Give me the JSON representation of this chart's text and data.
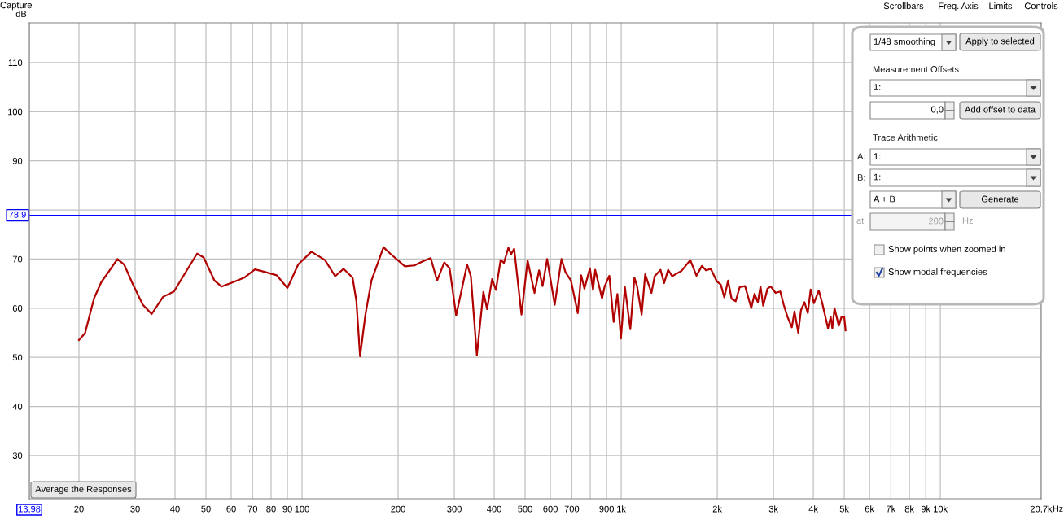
{
  "chart_data": {
    "type": "line",
    "ylabel": "dB",
    "xlabel": "Hz",
    "log": "x",
    "grid": true,
    "xlim": [
      13.98,
      20700
    ],
    "ylim": [
      21.2,
      118.1
    ],
    "xticks": [
      {
        "value": 13.98,
        "label": "13,98"
      },
      20,
      30,
      40,
      50,
      60,
      70,
      80,
      90,
      100,
      200,
      300,
      400,
      500,
      600,
      700,
      {
        "value": 800,
        "label": null
      },
      900,
      {
        "value": 1000,
        "label": "1k"
      },
      {
        "value": 2000,
        "label": "2k"
      },
      {
        "value": 3000,
        "label": "3k"
      },
      {
        "value": 4000,
        "label": "4k"
      },
      {
        "value": 5000,
        "label": "5k"
      },
      {
        "value": 6000,
        "label": "6k"
      },
      {
        "value": 7000,
        "label": "7k"
      },
      {
        "value": 8000,
        "label": "8k"
      },
      {
        "value": 9000,
        "label": "9k"
      },
      {
        "value": 10000,
        "label": "10k"
      },
      {
        "value": 20700,
        "label": "20,7k"
      }
    ],
    "yticks": [
      30,
      40,
      50,
      60,
      70,
      {
        "value": 80,
        "label": null
      },
      90,
      100,
      110
    ],
    "ref_lines": [
      {
        "axis": "y",
        "value": 78.9,
        "label": "78,9",
        "color": "#0000ff"
      }
    ],
    "x": [
      20,
      20.9,
      22.3,
      23.5,
      24.9,
      26.4,
      27.7,
      29.4,
      31.7,
      33.8,
      36.7,
      39.7,
      42.9,
      46.9,
      49.2,
      53.2,
      55.9,
      59.8,
      65.9,
      71.2,
      76.3,
      83.3,
      90.0,
      97.3,
      107,
      118,
      127,
      135,
      144,
      148,
      152,
      158,
      165,
      180,
      189,
      210,
      225,
      238,
      253,
      265,
      279,
      290,
      304,
      329,
      338,
      353,
      370,
      380,
      394,
      405,
      419,
      429,
      443,
      452,
      462,
      487,
      509,
      535,
      553,
      567,
      586,
      619,
      650,
      669,
      696,
      731,
      749,
      767,
      798,
      816,
      829,
      871,
      888,
      918,
      947,
      973,
      998,
      1027,
      1068,
      1100,
      1121,
      1159,
      1189,
      1244,
      1273,
      1328,
      1363,
      1403,
      1444,
      1546,
      1646,
      1721,
      1790,
      1843,
      1909,
      1992,
      2051,
      2104,
      2162,
      2218,
      2284,
      2352,
      2444,
      2556,
      2617,
      2680,
      2732,
      2786,
      2874,
      2942,
      3047,
      3150,
      3230,
      3320,
      3425,
      3491,
      3588,
      3658,
      3752,
      3842,
      3923,
      4017,
      4160,
      4258,
      4343,
      4446,
      4533,
      4587,
      4660,
      4806,
      4900,
      4998,
      5046
    ],
    "series": [
      {
        "color": "#b00000",
        "values": [
          53.5,
          54.9,
          62.0,
          65.3,
          67.6,
          70.0,
          68.9,
          65.1,
          60.7,
          58.8,
          62.3,
          63.4,
          67.0,
          71.1,
          70.3,
          65.6,
          64.4,
          65.1,
          66.2,
          67.9,
          67.4,
          66.7,
          64.1,
          68.9,
          71.5,
          69.8,
          66.5,
          68.0,
          66.2,
          61.5,
          50.2,
          58.7,
          65.6,
          72.4,
          71.1,
          68.5,
          68.7,
          69.5,
          70.2,
          65.6,
          69.3,
          68.1,
          58.5,
          68.9,
          66.5,
          50.4,
          63.3,
          59.8,
          65.9,
          63.7,
          69.8,
          69.2,
          72.3,
          71.0,
          72.1,
          58.7,
          69.7,
          63.1,
          67.7,
          64.5,
          70.0,
          60.7,
          70.0,
          67.3,
          65.6,
          59.0,
          66.7,
          64.0,
          68.1,
          63.7,
          67.8,
          62.0,
          64.5,
          66.6,
          57.2,
          62.9,
          53.8,
          64.3,
          55.7,
          66.2,
          64.5,
          58.7,
          66.9,
          63.1,
          66.5,
          67.8,
          65.1,
          67.8,
          66.5,
          67.6,
          69.8,
          66.6,
          68.6,
          67.7,
          68.0,
          65.5,
          64.8,
          62.2,
          65.6,
          61.9,
          61.4,
          64.3,
          64.5,
          60.0,
          62.9,
          61.2,
          64.4,
          60.5,
          64.0,
          64.4,
          63.1,
          63.4,
          60.7,
          58.2,
          56.1,
          59.3,
          55.0,
          59.6,
          61.2,
          59.0,
          63.8,
          61.0,
          63.6,
          61.2,
          58.8,
          55.9,
          58.2,
          55.9,
          60.0,
          56.4,
          58.2,
          58.2,
          55.5
        ]
      }
    ],
    "annotations": [
      "Capture",
      "Scrollbars",
      "Freq. Axis",
      "Limits",
      "Controls",
      "1/48 smoothing",
      "Apply to selected",
      "Measurement Offsets",
      "1:",
      "0,0",
      "Add offset to data",
      "Trace Arithmetic",
      "A:",
      "1:",
      "B:",
      "1:",
      "A + B",
      "Generate",
      "at",
      "200",
      "Hz",
      "Show points when zoomed in",
      "Show modal frequencies",
      "Average the Responses"
    ]
  }
}
